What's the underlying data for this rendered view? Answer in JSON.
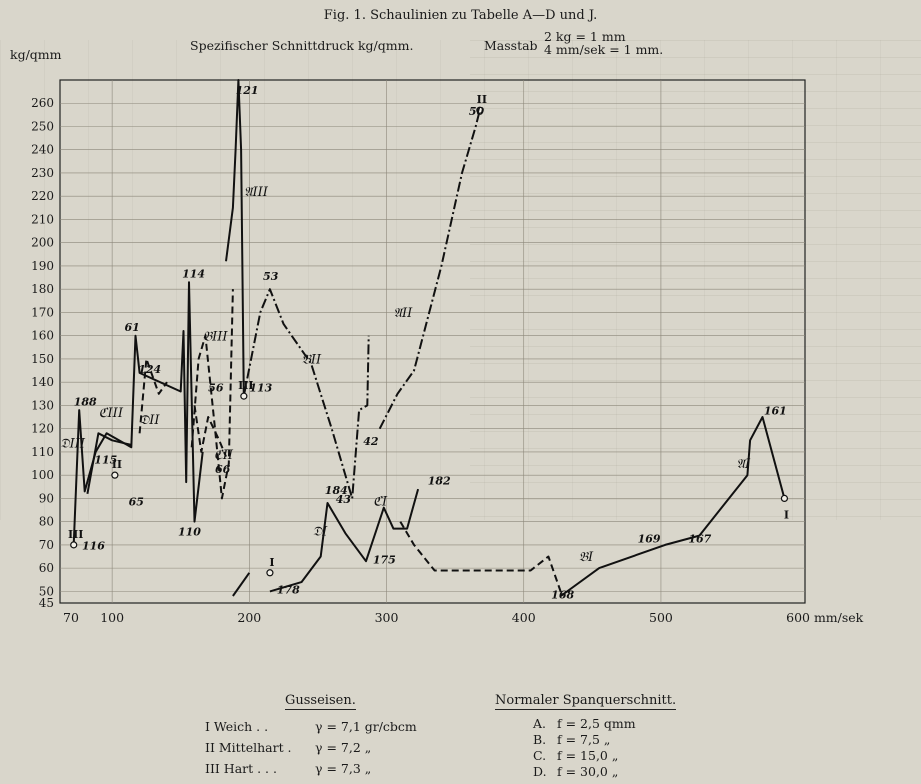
{
  "figure": {
    "title": "Fig. 1.  Schaulinien zu Tabelle A—D und J.",
    "subtitle": "Spezifischer Schnittdruck kg/qmm.",
    "scale_label": "Masstab",
    "scale_line1": "2 kg = 1 mm",
    "scale_line2": "4 mm/sek = 1 mm.",
    "y_unit": "kg/qmm",
    "x_unit": "mm/sek"
  },
  "legend_cast": {
    "title": "Gusseisen.",
    "rows": [
      {
        "name": "I Weich  .  .",
        "value": "γ = 7,1 gr/cbcm"
      },
      {
        "name": "II Mittelhart .",
        "value": "γ = 7,2     „"
      },
      {
        "name": "III Hart  .  .  .",
        "value": "γ = 7,3     „"
      }
    ]
  },
  "legend_cut": {
    "title": "Normaler Spanquerschnitt.",
    "rows": [
      {
        "name": "A.",
        "value": "f =  2,5 qmm"
      },
      {
        "name": "B.",
        "value": "f =  7,5     „"
      },
      {
        "name": "C.",
        "value": "f = 15,0     „"
      },
      {
        "name": "D.",
        "value": "f = 30,0     „"
      }
    ]
  },
  "chart_data": {
    "type": "line",
    "xlabel": "mm/sek",
    "ylabel": "kg/qmm",
    "xlim": [
      62,
      605
    ],
    "ylim": [
      45,
      270
    ],
    "x_ticks": [
      70,
      100,
      200,
      300,
      400,
      500,
      600
    ],
    "x_tick_labels": [
      "70",
      "100",
      "200",
      "300",
      "400",
      "500",
      "600 mm/sek"
    ],
    "y_ticks": [
      45,
      50,
      60,
      70,
      80,
      90,
      100,
      110,
      120,
      130,
      140,
      150,
      160,
      170,
      180,
      190,
      200,
      210,
      220,
      230,
      240,
      250,
      260
    ],
    "series": [
      {
        "name": "A I",
        "style": "solid",
        "points": [
          [
            427,
            48
          ],
          [
            455,
            60
          ],
          [
            503,
            70
          ],
          [
            528,
            74
          ],
          [
            563,
            100
          ],
          [
            565,
            115
          ],
          [
            574,
            125
          ],
          [
            590,
            90
          ]
        ]
      },
      {
        "name": "A II",
        "style": "dashdot",
        "points": [
          [
            295,
            120
          ],
          [
            308,
            135
          ],
          [
            320,
            145
          ],
          [
            340,
            190
          ],
          [
            355,
            230
          ],
          [
            365,
            250
          ],
          [
            368,
            257
          ]
        ]
      },
      {
        "name": "A III",
        "style": "solid",
        "points": [
          [
            183,
            192
          ],
          [
            188,
            215
          ],
          [
            190,
            240
          ],
          [
            192,
            270
          ],
          [
            194,
            240
          ],
          [
            196,
            134
          ]
        ]
      },
      {
        "name": "B I",
        "style": "dashed",
        "points": [
          [
            310,
            80
          ],
          [
            320,
            70
          ],
          [
            335,
            59
          ],
          [
            375,
            59
          ],
          [
            405,
            59
          ],
          [
            418,
            65
          ],
          [
            428,
            48
          ]
        ]
      },
      {
        "name": "B II",
        "style": "dashdot",
        "points": [
          [
            196,
            134
          ],
          [
            208,
            170
          ],
          [
            215,
            180
          ],
          [
            225,
            165
          ],
          [
            245,
            148
          ],
          [
            260,
            120
          ],
          [
            275,
            90
          ],
          [
            280,
            128
          ],
          [
            286,
            130
          ],
          [
            287,
            160
          ]
        ]
      },
      {
        "name": "B III",
        "style": "dashed",
        "points": [
          [
            158,
            112
          ],
          [
            163,
            150
          ],
          [
            168,
            160
          ],
          [
            175,
            120
          ],
          [
            180,
            90
          ],
          [
            185,
            105
          ],
          [
            188,
            180
          ]
        ]
      },
      {
        "name": "C I",
        "style": "solid",
        "points": [
          [
            215,
            50
          ],
          [
            238,
            54
          ],
          [
            252,
            65
          ],
          [
            257,
            88
          ],
          [
            270,
            75
          ],
          [
            285,
            63
          ],
          [
            298,
            86
          ],
          [
            305,
            77
          ],
          [
            315,
            77
          ],
          [
            323,
            94
          ]
        ]
      },
      {
        "name": "C II",
        "style": "dashed",
        "points": [
          [
            160,
            130
          ],
          [
            165,
            110
          ],
          [
            170,
            125
          ],
          [
            178,
            115
          ],
          [
            183,
            108
          ]
        ]
      },
      {
        "name": "C III",
        "style": "solid",
        "points": [
          [
            82,
            92
          ],
          [
            90,
            118
          ],
          [
            100,
            115
          ],
          [
            114,
            113
          ]
        ]
      },
      {
        "name": "D I",
        "style": "solid",
        "points": [
          [
            188,
            48
          ],
          [
            200,
            58
          ]
        ]
      },
      {
        "name": "D II",
        "style": "dashed",
        "points": [
          [
            120,
            118
          ],
          [
            125,
            150
          ],
          [
            134,
            135
          ],
          [
            140,
            140
          ]
        ]
      },
      {
        "name": "D III",
        "style": "solid",
        "points": [
          [
            72,
            70
          ],
          [
            76,
            128
          ],
          [
            80,
            93
          ],
          [
            88,
            110
          ],
          [
            96,
            118
          ],
          [
            108,
            114
          ],
          [
            114,
            112
          ],
          [
            117,
            160
          ],
          [
            120,
            144
          ],
          [
            150,
            136
          ],
          [
            152,
            162
          ],
          [
            154,
            97
          ],
          [
            156,
            183
          ],
          [
            160,
            80
          ],
          [
            166,
            110
          ]
        ]
      }
    ],
    "point_labels": [
      {
        "text": "116",
        "x": 78,
        "y": 68
      },
      {
        "text": "188",
        "x": 72,
        "y": 130
      },
      {
        "text": "115",
        "x": 87,
        "y": 105
      },
      {
        "text": "65",
        "x": 112,
        "y": 87
      },
      {
        "text": "61",
        "x": 109,
        "y": 162
      },
      {
        "text": "124",
        "x": 119,
        "y": 144
      },
      {
        "text": "114",
        "x": 151,
        "y": 185
      },
      {
        "text": "110",
        "x": 148,
        "y": 74
      },
      {
        "text": "56",
        "x": 170,
        "y": 136
      },
      {
        "text": "66",
        "x": 175,
        "y": 101
      },
      {
        "text": "121",
        "x": 190,
        "y": 264
      },
      {
        "text": "113",
        "x": 200,
        "y": 136
      },
      {
        "text": "53",
        "x": 210,
        "y": 184
      },
      {
        "text": "43",
        "x": 263,
        "y": 88
      },
      {
        "text": "184",
        "x": 255,
        "y": 92
      },
      {
        "text": "42",
        "x": 283,
        "y": 113
      },
      {
        "text": "175",
        "x": 290,
        "y": 62
      },
      {
        "text": "182",
        "x": 330,
        "y": 96
      },
      {
        "text": "50",
        "x": 360,
        "y": 255
      },
      {
        "text": "178",
        "x": 220,
        "y": 49
      },
      {
        "text": "168",
        "x": 420,
        "y": 47
      },
      {
        "text": "169",
        "x": 483,
        "y": 71
      },
      {
        "text": "167",
        "x": 520,
        "y": 71
      },
      {
        "text": "161",
        "x": 575,
        "y": 126
      }
    ],
    "curve_labels": [
      {
        "text": "𝔇III",
        "x": 62,
        "y": 112
      },
      {
        "text": "ℭIII",
        "x": 90,
        "y": 125
      },
      {
        "text": "𝔇II",
        "x": 120,
        "y": 122
      },
      {
        "text": "𝔅III",
        "x": 166,
        "y": 158
      },
      {
        "text": "ℭII",
        "x": 174,
        "y": 107
      },
      {
        "text": "𝔄III",
        "x": 196,
        "y": 220
      },
      {
        "text": "𝔅II",
        "x": 238,
        "y": 148
      },
      {
        "text": "𝔇I",
        "x": 246,
        "y": 74
      },
      {
        "text": "ℭI",
        "x": 290,
        "y": 87
      },
      {
        "text": "𝔄II",
        "x": 305,
        "y": 168
      },
      {
        "text": "𝔅I",
        "x": 440,
        "y": 63
      },
      {
        "text": "𝔄I",
        "x": 555,
        "y": 103
      }
    ],
    "circle_markers": [
      {
        "label": "III",
        "x": 72,
        "y": 70
      },
      {
        "label": "II",
        "x": 102,
        "y": 100
      },
      {
        "label": "III",
        "x": 196,
        "y": 134
      },
      {
        "label": "I",
        "x": 215,
        "y": 58
      },
      {
        "label": "II",
        "x": 368,
        "y": 257
      },
      {
        "label": "I",
        "x": 590,
        "y": 90
      }
    ],
    "grid": true
  }
}
